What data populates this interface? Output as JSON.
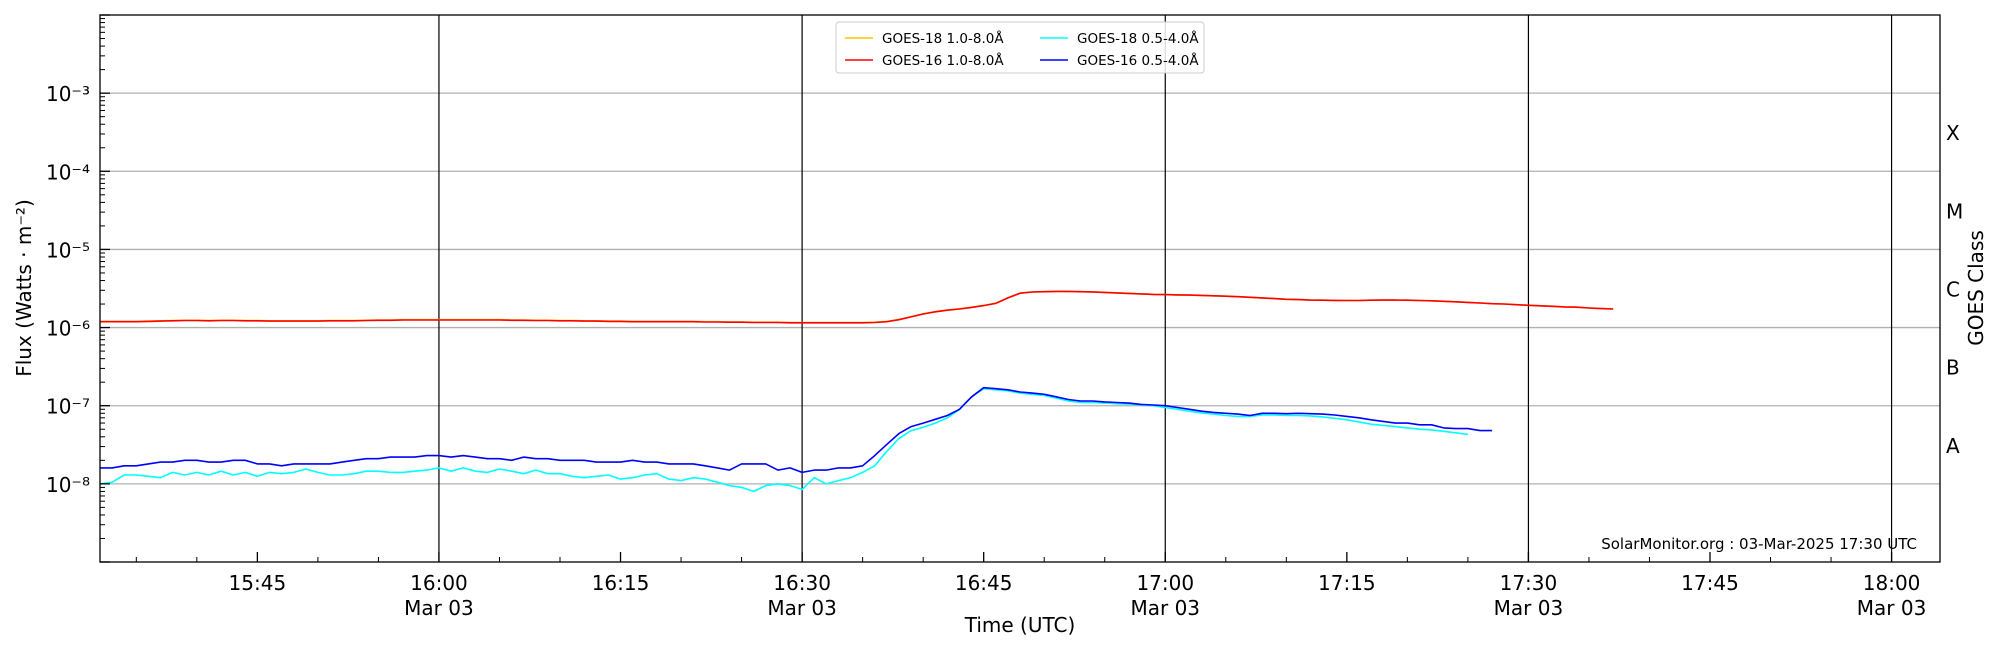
{
  "chart_data": {
    "type": "line",
    "title": "",
    "xlabel": "Time (UTC)",
    "ylabel": "Flux (Watts · m⁻²)",
    "y2label": "GOES Class",
    "yscale": "log",
    "ylim": [
      1e-09,
      0.01
    ],
    "xlim": [
      "15:32",
      "18:04"
    ],
    "grid": "horizontal at each decade",
    "x_ticks": [
      {
        "t": "15:45",
        "label": "15:45",
        "sub": ""
      },
      {
        "t": "16:00",
        "label": "16:00",
        "sub": "Mar 03"
      },
      {
        "t": "16:15",
        "label": "16:15",
        "sub": ""
      },
      {
        "t": "16:30",
        "label": "16:30",
        "sub": "Mar 03"
      },
      {
        "t": "16:45",
        "label": "16:45",
        "sub": ""
      },
      {
        "t": "17:00",
        "label": "17:00",
        "sub": "Mar 03"
      },
      {
        "t": "17:15",
        "label": "17:15",
        "sub": ""
      },
      {
        "t": "17:30",
        "label": "17:30",
        "sub": "Mar 03"
      },
      {
        "t": "17:45",
        "label": "17:45",
        "sub": ""
      },
      {
        "t": "18:00",
        "label": "18:00",
        "sub": "Mar 03"
      }
    ],
    "vertical_lines": [
      "16:00",
      "16:30",
      "17:00",
      "17:30",
      "18:00"
    ],
    "y_ticks": [
      {
        "v": 0.001,
        "label": "10⁻³"
      },
      {
        "v": 0.0001,
        "label": "10⁻⁴"
      },
      {
        "v": 1e-05,
        "label": "10⁻⁵"
      },
      {
        "v": 1e-06,
        "label": "10⁻⁶"
      },
      {
        "v": 1e-07,
        "label": "10⁻⁷"
      },
      {
        "v": 1e-08,
        "label": "10⁻⁸"
      }
    ],
    "class_labels": [
      {
        "label": "A",
        "v": 3.16e-08
      },
      {
        "label": "B",
        "v": 3.16e-07
      },
      {
        "label": "C",
        "v": 3.16e-06
      },
      {
        "label": "M",
        "v": 3.16e-05
      },
      {
        "label": "X",
        "v": 0.000316
      }
    ],
    "legend_position": "top-center",
    "start_time": "15:32",
    "interval_minutes": 1,
    "series": [
      {
        "name": "GOES-18 1.0-8.0Å",
        "color": "#ffc800",
        "scale": 1e-06,
        "values": [
          1.2,
          1.2,
          1.2,
          1.2,
          1.21,
          1.22,
          1.23,
          1.24,
          1.24,
          1.23,
          1.24,
          1.24,
          1.23,
          1.23,
          1.22,
          1.22,
          1.22,
          1.22,
          1.22,
          1.23,
          1.23,
          1.23,
          1.24,
          1.25,
          1.25,
          1.26,
          1.26,
          1.26,
          1.26,
          1.26,
          1.26,
          1.26,
          1.26,
          1.26,
          1.25,
          1.25,
          1.24,
          1.24,
          1.23,
          1.23,
          1.22,
          1.22,
          1.21,
          1.21,
          1.2,
          1.2,
          1.2,
          1.2,
          1.2,
          1.2,
          1.19,
          1.19,
          1.18,
          1.18,
          1.17,
          1.17,
          1.17,
          1.16,
          1.16,
          1.16,
          1.16,
          1.16,
          1.16,
          1.16,
          1.17,
          1.2,
          1.27,
          1.38,
          1.5,
          1.6,
          1.68,
          1.74,
          1.82,
          1.92,
          2.05,
          2.4,
          2.75,
          2.85,
          2.88,
          2.9,
          2.9,
          2.88,
          2.86,
          2.82,
          2.78,
          2.74,
          2.7,
          2.66,
          2.64,
          2.62,
          2.6,
          2.58,
          2.55,
          2.52,
          2.48,
          2.44,
          2.4,
          2.35,
          2.3,
          2.28,
          2.25,
          2.24,
          2.23,
          2.22,
          2.22,
          2.24,
          2.25,
          2.25,
          2.24,
          2.22,
          2.2,
          2.17,
          2.14,
          2.1,
          2.06,
          2.02,
          2.0,
          1.96,
          1.93,
          1.9,
          1.87,
          1.84,
          1.82,
          1.78,
          1.75,
          1.73
        ]
      },
      {
        "name": "GOES-18 0.5-4.0Å",
        "color": "#00ffff",
        "scale": 1e-08,
        "values": [
          1.0,
          1.05,
          1.3,
          1.3,
          1.25,
          1.2,
          1.4,
          1.3,
          1.4,
          1.3,
          1.45,
          1.3,
          1.4,
          1.25,
          1.4,
          1.35,
          1.4,
          1.55,
          1.4,
          1.3,
          1.3,
          1.35,
          1.45,
          1.45,
          1.4,
          1.4,
          1.45,
          1.5,
          1.6,
          1.45,
          1.6,
          1.45,
          1.4,
          1.55,
          1.45,
          1.35,
          1.5,
          1.35,
          1.35,
          1.25,
          1.2,
          1.25,
          1.3,
          1.15,
          1.2,
          1.3,
          1.35,
          1.15,
          1.1,
          1.2,
          1.15,
          1.05,
          0.95,
          0.9,
          0.8,
          0.95,
          1.0,
          0.95,
          0.85,
          1.2,
          1.0,
          1.1,
          1.2,
          1.4,
          1.7,
          2.6,
          3.8,
          4.8,
          5.3,
          6.0,
          7.0,
          9.0,
          13,
          16.5,
          16,
          15.5,
          14.5,
          14,
          13.5,
          12.5,
          11.5,
          11,
          11,
          10.8,
          10.6,
          10.5,
          10.2,
          10,
          9.5,
          9,
          8.5,
          8.1,
          7.8,
          7.5,
          7.3,
          7.3,
          7.6,
          7.6,
          7.5,
          7.5,
          7.4,
          7.2,
          6.9,
          6.6,
          6.2,
          5.8,
          5.6,
          5.4,
          5.2,
          5.0,
          4.9,
          4.7,
          4.5,
          4.3,
          null,
          null
        ]
      },
      {
        "name": "GOES-16 1.0-8.0Å",
        "color": "#ff0000",
        "scale": 1e-06,
        "values": [
          1.19,
          1.19,
          1.19,
          1.19,
          1.2,
          1.21,
          1.22,
          1.23,
          1.23,
          1.22,
          1.23,
          1.23,
          1.22,
          1.22,
          1.21,
          1.21,
          1.21,
          1.21,
          1.21,
          1.22,
          1.22,
          1.22,
          1.23,
          1.24,
          1.24,
          1.25,
          1.25,
          1.25,
          1.25,
          1.25,
          1.25,
          1.25,
          1.25,
          1.25,
          1.24,
          1.24,
          1.23,
          1.23,
          1.22,
          1.22,
          1.21,
          1.21,
          1.2,
          1.2,
          1.19,
          1.19,
          1.19,
          1.19,
          1.19,
          1.19,
          1.18,
          1.18,
          1.17,
          1.17,
          1.16,
          1.16,
          1.16,
          1.15,
          1.15,
          1.15,
          1.15,
          1.15,
          1.15,
          1.15,
          1.16,
          1.19,
          1.26,
          1.37,
          1.49,
          1.59,
          1.67,
          1.73,
          1.81,
          1.91,
          2.04,
          2.4,
          2.75,
          2.85,
          2.88,
          2.9,
          2.9,
          2.88,
          2.86,
          2.82,
          2.78,
          2.74,
          2.7,
          2.66,
          2.64,
          2.62,
          2.6,
          2.58,
          2.55,
          2.52,
          2.48,
          2.44,
          2.4,
          2.35,
          2.3,
          2.28,
          2.25,
          2.24,
          2.23,
          2.22,
          2.22,
          2.24,
          2.25,
          2.25,
          2.24,
          2.22,
          2.2,
          2.17,
          2.14,
          2.1,
          2.06,
          2.02,
          2.0,
          1.96,
          1.93,
          1.9,
          1.87,
          1.84,
          1.82,
          1.78,
          1.75,
          1.73
        ]
      },
      {
        "name": "GOES-16 0.5-4.0Å",
        "color": "#0000ff",
        "scale": 1e-08,
        "values": [
          1.6,
          1.6,
          1.7,
          1.7,
          1.8,
          1.9,
          1.9,
          2.0,
          2.0,
          1.9,
          1.9,
          2.0,
          2.0,
          1.8,
          1.8,
          1.7,
          1.8,
          1.8,
          1.8,
          1.8,
          1.9,
          2.0,
          2.1,
          2.1,
          2.2,
          2.2,
          2.2,
          2.3,
          2.3,
          2.2,
          2.3,
          2.2,
          2.1,
          2.1,
          2.0,
          2.2,
          2.1,
          2.1,
          2.0,
          2.0,
          2.0,
          1.9,
          1.9,
          1.9,
          2.0,
          1.9,
          1.9,
          1.8,
          1.8,
          1.8,
          1.7,
          1.6,
          1.5,
          1.8,
          1.8,
          1.8,
          1.5,
          1.6,
          1.4,
          1.5,
          1.5,
          1.6,
          1.6,
          1.7,
          2.3,
          3.2,
          4.4,
          5.4,
          6.0,
          6.7,
          7.5,
          9.0,
          13,
          17,
          16.5,
          16,
          15,
          14.5,
          14,
          13,
          12,
          11.5,
          11.5,
          11.2,
          11,
          10.8,
          10.4,
          10.2,
          10,
          9.5,
          9,
          8.5,
          8.2,
          8,
          7.8,
          7.5,
          8,
          8,
          7.9,
          8,
          7.9,
          7.8,
          7.6,
          7.3,
          7,
          6.6,
          6.3,
          6,
          6,
          5.7,
          5.7,
          5.2,
          5.1,
          5.1,
          4.8,
          4.8
        ]
      }
    ],
    "legend_order": [
      0,
      1,
      2,
      3
    ],
    "annotation": "SolarMonitor.org : 03-Mar-2025 17:30 UTC"
  }
}
